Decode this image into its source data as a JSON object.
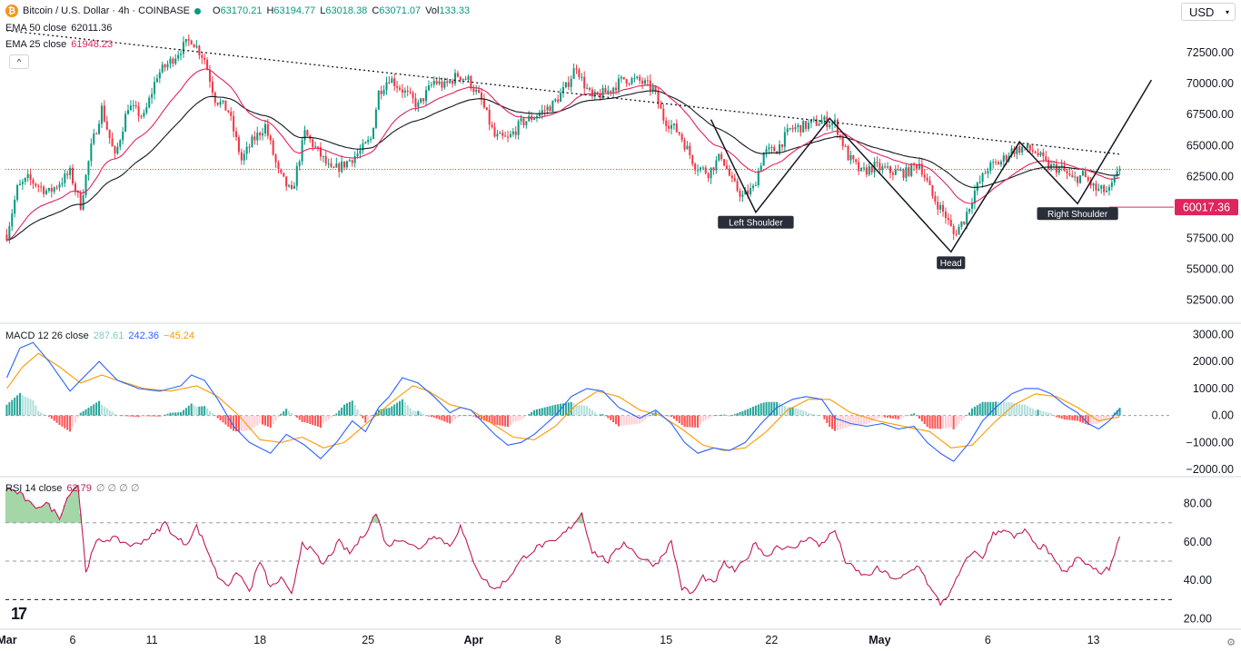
{
  "header": {
    "symbol": "Bitcoin / U.S. Dollar · 4h · COINBASE",
    "coin_glyph": "₿",
    "open_label": "O",
    "open": "63170.21",
    "high_label": "H",
    "high": "63194.77",
    "low_label": "L",
    "low": "63018.38",
    "close_label": "C",
    "close": "63071.07",
    "vol_label": "Vol",
    "vol": "133.33"
  },
  "legend": {
    "ema50_label": "EMA 50 close",
    "ema50_value": "62011.36",
    "ema25_label": "EMA 25 close",
    "ema25_value": "61948.23",
    "collapse_glyph": "^",
    "macd_label": "MACD 12 26 close",
    "macd_hist": "287.61",
    "macd_line": "242.36",
    "macd_signal": "−45.24",
    "rsi_label": "RSI 14 close",
    "rsi_value": "62.79",
    "rsi_extra": "∅ ∅ ∅ ∅"
  },
  "currency": {
    "selected": "USD"
  },
  "settings_glyph": "⚙",
  "logo_text": "17",
  "colors": {
    "up": "#089981",
    "down": "#f23645",
    "ema25": "#e0245e",
    "ema50": "#131722",
    "macd": "#2962ff",
    "signal": "#ff9800",
    "rsi": "#c2185b",
    "grid": "#e0e3eb"
  },
  "chart_data": [
    {
      "type": "candlestick",
      "title": "Bitcoin / U.S. Dollar · 4h · COINBASE",
      "x_ticks": [
        "Mar",
        "6",
        "11",
        "18",
        "25",
        "Apr",
        "8",
        "15",
        "22",
        "May",
        "6",
        "13"
      ],
      "x_tick_bars": [
        0,
        25,
        55,
        96,
        137,
        177,
        209,
        250,
        290,
        331,
        372,
        412
      ],
      "y_ticks": [
        "52500.00",
        "55000.00",
        "57500.00",
        "60000.00",
        "62500.00",
        "65000.00",
        "67500.00",
        "70000.00",
        "72500.00"
      ],
      "ylim": [
        50700,
        75300
      ],
      "bar_count": 423,
      "close_path": [
        [
          0,
          57800
        ],
        [
          4,
          61500
        ],
        [
          8,
          62300
        ],
        [
          16,
          61200
        ],
        [
          24,
          62800
        ],
        [
          28,
          60200
        ],
        [
          32,
          64800
        ],
        [
          36,
          68000
        ],
        [
          41,
          64000
        ],
        [
          46,
          68200
        ],
        [
          52,
          67300
        ],
        [
          57,
          70700
        ],
        [
          62,
          71800
        ],
        [
          66,
          72800
        ],
        [
          70,
          73600
        ],
        [
          75,
          72000
        ],
        [
          79,
          68800
        ],
        [
          84,
          67800
        ],
        [
          89,
          63800
        ],
        [
          93,
          65300
        ],
        [
          98,
          66600
        ],
        [
          103,
          62800
        ],
        [
          108,
          61100
        ],
        [
          113,
          66000
        ],
        [
          118,
          64500
        ],
        [
          123,
          62900
        ],
        [
          128,
          63500
        ],
        [
          134,
          64500
        ],
        [
          138,
          65500
        ],
        [
          141,
          69300
        ],
        [
          145,
          70500
        ],
        [
          150,
          69500
        ],
        [
          156,
          68200
        ],
        [
          162,
          70200
        ],
        [
          166,
          69800
        ],
        [
          171,
          70700
        ],
        [
          175,
          70300
        ],
        [
          180,
          68600
        ],
        [
          185,
          65700
        ],
        [
          190,
          65500
        ],
        [
          195,
          66800
        ],
        [
          202,
          67600
        ],
        [
          207,
          68300
        ],
        [
          212,
          69700
        ],
        [
          216,
          71500
        ],
        [
          218,
          70300
        ],
        [
          222,
          68800
        ],
        [
          228,
          69400
        ],
        [
          234,
          70400
        ],
        [
          240,
          70200
        ],
        [
          245,
          69600
        ],
        [
          249,
          67200
        ],
        [
          255,
          66000
        ],
        [
          261,
          63400
        ],
        [
          266,
          62800
        ],
        [
          271,
          64200
        ],
        [
          275,
          62000
        ],
        [
          279,
          60900
        ],
        [
          283,
          61500
        ],
        [
          287,
          64400
        ],
        [
          292,
          64700
        ],
        [
          297,
          66300
        ],
        [
          303,
          66600
        ],
        [
          309,
          67000
        ],
        [
          314,
          66800
        ],
        [
          319,
          64100
        ],
        [
          324,
          62800
        ],
        [
          329,
          63300
        ],
        [
          335,
          62900
        ],
        [
          341,
          62800
        ],
        [
          346,
          63600
        ],
        [
          351,
          60900
        ],
        [
          356,
          59300
        ],
        [
          359,
          57800
        ],
        [
          363,
          59000
        ],
        [
          367,
          61300
        ],
        [
          372,
          63200
        ],
        [
          377,
          63700
        ],
        [
          381,
          64600
        ],
        [
          385,
          64800
        ],
        [
          390,
          64500
        ],
        [
          395,
          63300
        ],
        [
          400,
          63100
        ],
        [
          404,
          62200
        ],
        [
          408,
          62600
        ],
        [
          413,
          61400
        ],
        [
          418,
          61300
        ],
        [
          422,
          63071
        ]
      ],
      "ema25_last": 61948.23,
      "ema50_last": 62011.36,
      "horizontal_line": {
        "value": 63071,
        "style": "dotted red"
      },
      "price_label": "60017.36",
      "support_line": {
        "value": 60017.36,
        "from_bar": 418
      },
      "trendline": [
        [
          0,
          74300
        ],
        [
          422,
          64300
        ]
      ],
      "head_shoulders": {
        "path": [
          [
            267,
            67100
          ],
          [
            284,
            59600
          ],
          [
            312,
            67200
          ],
          [
            358,
            56400
          ],
          [
            384,
            65300
          ],
          [
            406,
            60300
          ],
          [
            434,
            70300
          ]
        ],
        "left_shoulder_label": "Left Shoulder",
        "head_label": "Head",
        "right_shoulder_label": "Right Shoulder",
        "left_shoulder_at": [
          284,
          59600
        ],
        "head_at": [
          358,
          56400
        ],
        "right_shoulder_at": [
          406,
          60300
        ]
      }
    },
    {
      "type": "line",
      "title": "MACD 12 26 close",
      "y_ticks": [
        "3000.00",
        "2000.00",
        "1000.00",
        "0.00",
        "−1000.00",
        "−2000.00"
      ],
      "ylim": [
        -2200,
        3350
      ],
      "macd_path": [
        [
          0,
          1400
        ],
        [
          5,
          2500
        ],
        [
          10,
          2700
        ],
        [
          16,
          2000
        ],
        [
          24,
          900
        ],
        [
          30,
          1500
        ],
        [
          35,
          2000
        ],
        [
          42,
          1300
        ],
        [
          50,
          1000
        ],
        [
          58,
          900
        ],
        [
          66,
          1100
        ],
        [
          70,
          1500
        ],
        [
          75,
          1300
        ],
        [
          80,
          600
        ],
        [
          86,
          -400
        ],
        [
          92,
          -1000
        ],
        [
          100,
          -1400
        ],
        [
          106,
          -700
        ],
        [
          113,
          -1100
        ],
        [
          119,
          -1600
        ],
        [
          125,
          -1000
        ],
        [
          131,
          -200
        ],
        [
          136,
          -600
        ],
        [
          141,
          300
        ],
        [
          145,
          700
        ],
        [
          150,
          1400
        ],
        [
          156,
          1200
        ],
        [
          162,
          700
        ],
        [
          168,
          100
        ],
        [
          172,
          300
        ],
        [
          176,
          200
        ],
        [
          180,
          -200
        ],
        [
          185,
          -700
        ],
        [
          190,
          -1100
        ],
        [
          195,
          -1000
        ],
        [
          200,
          -700
        ],
        [
          208,
          0
        ],
        [
          214,
          700
        ],
        [
          220,
          1000
        ],
        [
          226,
          900
        ],
        [
          232,
          300
        ],
        [
          240,
          -100
        ],
        [
          246,
          200
        ],
        [
          252,
          -300
        ],
        [
          257,
          -1000
        ],
        [
          262,
          -1400
        ],
        [
          268,
          -1200
        ],
        [
          274,
          -1300
        ],
        [
          280,
          -1000
        ],
        [
          286,
          -300
        ],
        [
          292,
          300
        ],
        [
          298,
          600
        ],
        [
          303,
          700
        ],
        [
          309,
          600
        ],
        [
          314,
          -100
        ],
        [
          320,
          -300
        ],
        [
          326,
          -400
        ],
        [
          332,
          -300
        ],
        [
          338,
          -500
        ],
        [
          344,
          -400
        ],
        [
          349,
          -1000
        ],
        [
          354,
          -1400
        ],
        [
          359,
          -1700
        ],
        [
          365,
          -1000
        ],
        [
          370,
          -200
        ],
        [
          375,
          300
        ],
        [
          381,
          800
        ],
        [
          386,
          1000
        ],
        [
          391,
          1000
        ],
        [
          396,
          800
        ],
        [
          401,
          400
        ],
        [
          406,
          100
        ],
        [
          410,
          -300
        ],
        [
          414,
          -500
        ],
        [
          418,
          -200
        ],
        [
          422,
          242
        ]
      ],
      "signal_path": [
        [
          0,
          1000
        ],
        [
          6,
          1800
        ],
        [
          12,
          2300
        ],
        [
          20,
          1800
        ],
        [
          28,
          1200
        ],
        [
          36,
          1500
        ],
        [
          42,
          1300
        ],
        [
          52,
          1000
        ],
        [
          62,
          900
        ],
        [
          72,
          1100
        ],
        [
          80,
          700
        ],
        [
          88,
          0
        ],
        [
          96,
          -900
        ],
        [
          104,
          -1000
        ],
        [
          112,
          -800
        ],
        [
          120,
          -1200
        ],
        [
          128,
          -1000
        ],
        [
          134,
          -500
        ],
        [
          140,
          0
        ],
        [
          146,
          500
        ],
        [
          154,
          1100
        ],
        [
          160,
          900
        ],
        [
          168,
          400
        ],
        [
          176,
          200
        ],
        [
          184,
          -300
        ],
        [
          192,
          -800
        ],
        [
          200,
          -900
        ],
        [
          208,
          -400
        ],
        [
          216,
          400
        ],
        [
          224,
          900
        ],
        [
          232,
          700
        ],
        [
          240,
          200
        ],
        [
          248,
          0
        ],
        [
          256,
          -500
        ],
        [
          264,
          -1100
        ],
        [
          272,
          -1300
        ],
        [
          280,
          -1200
        ],
        [
          288,
          -600
        ],
        [
          296,
          200
        ],
        [
          304,
          600
        ],
        [
          312,
          600
        ],
        [
          320,
          100
        ],
        [
          330,
          -200
        ],
        [
          340,
          -400
        ],
        [
          350,
          -600
        ],
        [
          358,
          -1200
        ],
        [
          366,
          -1100
        ],
        [
          374,
          -300
        ],
        [
          382,
          400
        ],
        [
          390,
          800
        ],
        [
          398,
          700
        ],
        [
          406,
          300
        ],
        [
          414,
          -200
        ],
        [
          422,
          -45
        ]
      ],
      "macd_value": "242.36",
      "signal_value": "−45.24",
      "hist_value": "287.61"
    },
    {
      "type": "line",
      "title": "RSI 14 close",
      "y_ticks": [
        "80.00",
        "60.00",
        "40.00",
        "20.00"
      ],
      "ylim": [
        16,
        93
      ],
      "bands": [
        70,
        50,
        30
      ],
      "rsi_path": [
        [
          0,
          88
        ],
        [
          5,
          85
        ],
        [
          10,
          78
        ],
        [
          15,
          80
        ],
        [
          20,
          73
        ],
        [
          24,
          86
        ],
        [
          27,
          90
        ],
        [
          30,
          45
        ],
        [
          34,
          60
        ],
        [
          40,
          62
        ],
        [
          48,
          58
        ],
        [
          56,
          64
        ],
        [
          60,
          70
        ],
        [
          64,
          62
        ],
        [
          68,
          59
        ],
        [
          72,
          68
        ],
        [
          76,
          56
        ],
        [
          80,
          42
        ],
        [
          84,
          38
        ],
        [
          88,
          44
        ],
        [
          92,
          34
        ],
        [
          96,
          50
        ],
        [
          100,
          36
        ],
        [
          104,
          41
        ],
        [
          108,
          32
        ],
        [
          112,
          60
        ],
        [
          116,
          55
        ],
        [
          120,
          48
        ],
        [
          126,
          60
        ],
        [
          130,
          54
        ],
        [
          136,
          65
        ],
        [
          140,
          75
        ],
        [
          144,
          58
        ],
        [
          150,
          62
        ],
        [
          156,
          56
        ],
        [
          162,
          64
        ],
        [
          168,
          58
        ],
        [
          172,
          68
        ],
        [
          176,
          53
        ],
        [
          180,
          42
        ],
        [
          185,
          35
        ],
        [
          190,
          41
        ],
        [
          196,
          52
        ],
        [
          202,
          58
        ],
        [
          208,
          60
        ],
        [
          214,
          68
        ],
        [
          218,
          75
        ],
        [
          222,
          55
        ],
        [
          228,
          50
        ],
        [
          234,
          60
        ],
        [
          240,
          52
        ],
        [
          246,
          48
        ],
        [
          252,
          60
        ],
        [
          256,
          36
        ],
        [
          260,
          33
        ],
        [
          264,
          42
        ],
        [
          268,
          38
        ],
        [
          272,
          49
        ],
        [
          276,
          45
        ],
        [
          280,
          50
        ],
        [
          284,
          60
        ],
        [
          288,
          52
        ],
        [
          292,
          58
        ],
        [
          298,
          56
        ],
        [
          304,
          63
        ],
        [
          308,
          58
        ],
        [
          314,
          66
        ],
        [
          318,
          50
        ],
        [
          322,
          45
        ],
        [
          326,
          42
        ],
        [
          330,
          46
        ],
        [
          334,
          43
        ],
        [
          338,
          40
        ],
        [
          342,
          44
        ],
        [
          346,
          48
        ],
        [
          350,
          36
        ],
        [
          354,
          28
        ],
        [
          358,
          34
        ],
        [
          362,
          46
        ],
        [
          366,
          55
        ],
        [
          370,
          52
        ],
        [
          374,
          64
        ],
        [
          378,
          67
        ],
        [
          382,
          62
        ],
        [
          386,
          66
        ],
        [
          390,
          58
        ],
        [
          394,
          57
        ],
        [
          398,
          48
        ],
        [
          402,
          44
        ],
        [
          406,
          52
        ],
        [
          410,
          48
        ],
        [
          414,
          44
        ],
        [
          418,
          46
        ],
        [
          422,
          63
        ]
      ],
      "rsi_value": "62.79"
    }
  ]
}
